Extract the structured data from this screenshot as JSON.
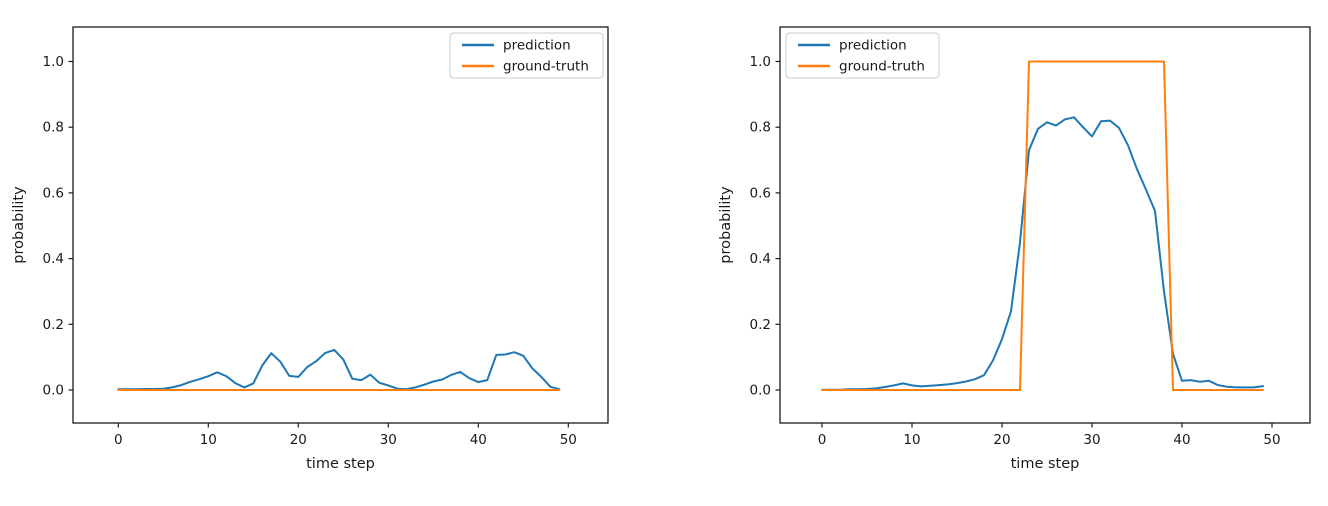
{
  "figure": {
    "background": "#ffffff",
    "text_color": "#1a1a1a",
    "accent_colors": {
      "prediction": "#1f77b4",
      "ground_truth": "#ff7f0e"
    }
  },
  "chart_data": [
    {
      "type": "line",
      "title": "",
      "xlabel": "time step",
      "ylabel": "probability",
      "x_ticks": [
        0,
        10,
        20,
        30,
        40,
        50
      ],
      "y_ticks": [
        0.0,
        0.2,
        0.4,
        0.6,
        0.8,
        1.0
      ],
      "xlim": [
        -5,
        54.4
      ],
      "ylim": [
        -0.1,
        1.105
      ],
      "grid": false,
      "legend_position": "upper right",
      "x": [
        0,
        1,
        2,
        3,
        4,
        5,
        6,
        7,
        8,
        9,
        10,
        11,
        12,
        13,
        14,
        15,
        16,
        17,
        18,
        19,
        20,
        21,
        22,
        23,
        24,
        25,
        26,
        27,
        28,
        29,
        30,
        31,
        32,
        33,
        34,
        35,
        36,
        37,
        38,
        39,
        40,
        41,
        42,
        43,
        44,
        45,
        46,
        47,
        48,
        49
      ],
      "series": [
        {
          "name": "prediction",
          "color": "#1f77b4",
          "values": [
            0.002,
            0.002,
            0.002,
            0.003,
            0.003,
            0.004,
            0.008,
            0.015,
            0.025,
            0.033,
            0.042,
            0.054,
            0.042,
            0.021,
            0.008,
            0.02,
            0.075,
            0.112,
            0.086,
            0.043,
            0.04,
            0.07,
            0.088,
            0.113,
            0.122,
            0.093,
            0.034,
            0.03,
            0.047,
            0.022,
            0.014,
            0.004,
            0.002,
            0.008,
            0.016,
            0.026,
            0.032,
            0.046,
            0.055,
            0.036,
            0.024,
            0.03,
            0.107,
            0.108,
            0.115,
            0.104,
            0.066,
            0.04,
            0.01,
            0.002
          ]
        },
        {
          "name": "ground-truth",
          "color": "#ff7f0e",
          "values": [
            0,
            0,
            0,
            0,
            0,
            0,
            0,
            0,
            0,
            0,
            0,
            0,
            0,
            0,
            0,
            0,
            0,
            0,
            0,
            0,
            0,
            0,
            0,
            0,
            0,
            0,
            0,
            0,
            0,
            0,
            0,
            0,
            0,
            0,
            0,
            0,
            0,
            0,
            0,
            0,
            0,
            0,
            0,
            0,
            0,
            0,
            0,
            0,
            0,
            0
          ]
        }
      ]
    },
    {
      "type": "line",
      "title": "",
      "xlabel": "time step",
      "ylabel": "probability",
      "x_ticks": [
        0,
        10,
        20,
        30,
        40,
        50
      ],
      "y_ticks": [
        0.0,
        0.2,
        0.4,
        0.6,
        0.8,
        1.0
      ],
      "xlim": [
        -4.7,
        54.2
      ],
      "ylim": [
        -0.1,
        1.105
      ],
      "grid": false,
      "legend_position": "upper left",
      "x": [
        0,
        1,
        2,
        3,
        4,
        5,
        6,
        7,
        8,
        9,
        10,
        11,
        12,
        13,
        14,
        15,
        16,
        17,
        18,
        19,
        20,
        21,
        22,
        23,
        24,
        25,
        26,
        27,
        28,
        29,
        30,
        31,
        32,
        33,
        34,
        35,
        36,
        37,
        38,
        39,
        40,
        41,
        42,
        43,
        44,
        45,
        46,
        47,
        48,
        49
      ],
      "series": [
        {
          "name": "prediction",
          "color": "#1f77b4",
          "values": [
            0.001,
            0.001,
            0.001,
            0.002,
            0.002,
            0.003,
            0.005,
            0.009,
            0.014,
            0.02,
            0.014,
            0.011,
            0.013,
            0.015,
            0.017,
            0.021,
            0.026,
            0.033,
            0.045,
            0.09,
            0.155,
            0.24,
            0.45,
            0.73,
            0.795,
            0.815,
            0.805,
            0.824,
            0.83,
            0.8,
            0.772,
            0.818,
            0.82,
            0.798,
            0.745,
            0.672,
            0.61,
            0.545,
            0.3,
            0.11,
            0.028,
            0.03,
            0.025,
            0.028,
            0.015,
            0.01,
            0.008,
            0.008,
            0.008,
            0.012
          ]
        },
        {
          "name": "ground-truth",
          "color": "#ff7f0e",
          "values": [
            0,
            0,
            0,
            0,
            0,
            0,
            0,
            0,
            0,
            0,
            0,
            0,
            0,
            0,
            0,
            0,
            0,
            0,
            0,
            0,
            0,
            0,
            0,
            1,
            1,
            1,
            1,
            1,
            1,
            1,
            1,
            1,
            1,
            1,
            1,
            1,
            1,
            1,
            1,
            0,
            0,
            0,
            0,
            0,
            0,
            0,
            0,
            0,
            0,
            0
          ]
        }
      ]
    }
  ]
}
